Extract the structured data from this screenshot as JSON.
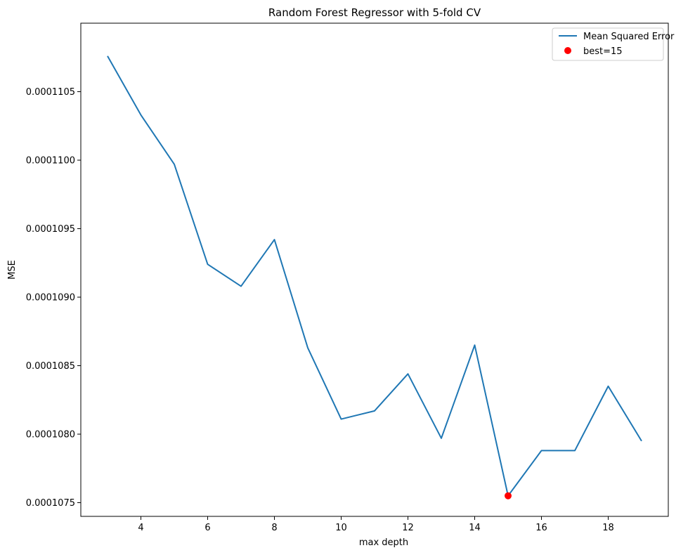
{
  "chart_data": {
    "type": "line",
    "title": "Random Forest Regressor with 5-fold CV",
    "xlabel": "max depth",
    "ylabel": "MSE",
    "xlim": [
      2.2,
      19.8
    ],
    "ylim": [
      0.0001074,
      0.000111
    ],
    "x_ticks": [
      4,
      6,
      8,
      10,
      12,
      14,
      16,
      18
    ],
    "y_ticks": [
      0.0001075,
      0.000108,
      0.0001085,
      0.000109,
      0.0001095,
      0.00011,
      0.0001105
    ],
    "y_tick_labels": [
      "0.0001075",
      "0.0001080",
      "0.0001085",
      "0.0001090",
      "0.0001095",
      "0.0001100",
      "0.0001105"
    ],
    "grid": false,
    "legend_position": "top-right",
    "series": [
      {
        "name": "Mean Squared Error",
        "color": "#1f77b4",
        "x": [
          3,
          4,
          5,
          6,
          7,
          8,
          9,
          10,
          11,
          12,
          13,
          14,
          15,
          16,
          17,
          18,
          19
        ],
        "y": [
          0.00011076,
          0.00011033,
          0.00010997,
          0.00010924,
          0.00010908,
          0.00010942,
          0.00010863,
          0.00010811,
          0.00010817,
          0.00010844,
          0.00010797,
          0.00010865,
          0.00010755,
          0.00010788,
          0.00010788,
          0.00010835,
          0.00010795
        ]
      }
    ],
    "best_point": {
      "name": "best=15",
      "color": "#ff0000",
      "x": 15,
      "y": 0.00010755
    }
  }
}
